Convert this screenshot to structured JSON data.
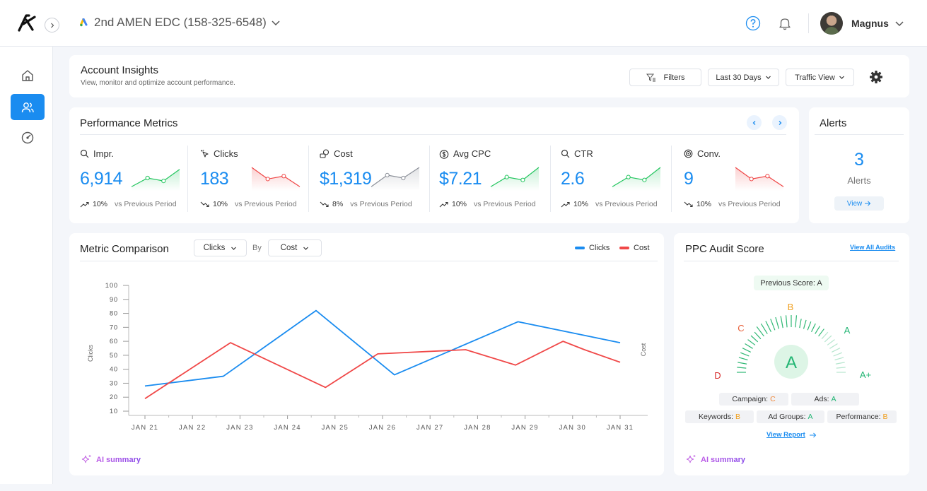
{
  "topbar": {
    "account_name": "2nd AMEN EDC (158-325-6548)",
    "user_name": "Magnus"
  },
  "insights": {
    "title": "Account Insights",
    "subtitle": "View, monitor and optimize account performance.",
    "filters_label": "Filters",
    "date_range": "Last 30 Days",
    "view_mode": "Traffic View"
  },
  "performance": {
    "title": "Performance Metrics",
    "metrics": [
      {
        "label": "Impr.",
        "value": "6,914",
        "change": "10%",
        "trend": "up",
        "compare": "vs Previous Period",
        "spark": [
          2,
          11,
          8,
          20
        ],
        "color": "#22c55e"
      },
      {
        "label": "Clicks",
        "value": "183",
        "change": "10%",
        "trend": "down",
        "compare": "vs Previous Period",
        "spark": [
          22,
          10,
          13,
          2
        ],
        "color": "#ef4444"
      },
      {
        "label": "Cost",
        "value": "$1,319",
        "change": "8%",
        "trend": "down",
        "compare": "vs Previous Period",
        "spark": [
          2,
          14,
          11,
          22
        ],
        "color": "#8b8f98"
      },
      {
        "label": "Avg CPC",
        "value": "$7.21",
        "change": "10%",
        "trend": "up",
        "compare": "vs Previous Period",
        "spark": [
          2,
          12,
          9,
          22
        ],
        "color": "#22c55e"
      },
      {
        "label": "CTR",
        "value": "2.6",
        "change": "10%",
        "trend": "up",
        "compare": "vs Previous Period",
        "spark": [
          2,
          12,
          9,
          22
        ],
        "color": "#22c55e"
      },
      {
        "label": "Conv.",
        "value": "9",
        "change": "10%",
        "trend": "down",
        "compare": "vs Previous Period",
        "spark": [
          22,
          10,
          13,
          2
        ],
        "color": "#ef4444"
      }
    ]
  },
  "alerts": {
    "title": "Alerts",
    "count": "3",
    "label": "Alerts",
    "view_label": "View"
  },
  "comparison": {
    "title": "Metric Comparison",
    "metric_a": "Clicks",
    "by_label": "By",
    "metric_b": "Cost",
    "ai_summary": "AI summary"
  },
  "chart_data": {
    "type": "line",
    "title": "Metric Comparison",
    "xlabel": "",
    "ylabel": "Clicks",
    "y2label": "Cost",
    "ylim": [
      10,
      100
    ],
    "yticks": [
      10,
      20,
      30,
      40,
      50,
      60,
      70,
      80,
      90,
      100
    ],
    "categories": [
      "JAN 21",
      "JAN 22",
      "JAN 23",
      "JAN 24",
      "JAN 25",
      "JAN 26",
      "JAN 27",
      "JAN 28",
      "JAN 29",
      "JAN 30",
      "JAN 31"
    ],
    "series": [
      {
        "name": "Clicks",
        "color": "#1a8cf0",
        "x": [
          21,
          22.65,
          24.6,
          26.25,
          28.85,
          31
        ],
        "values": [
          28,
          35,
          82,
          36,
          74,
          59
        ]
      },
      {
        "name": "Cost",
        "color": "#f04848",
        "x": [
          21,
          22.8,
          24.8,
          25.9,
          27.75,
          28.8,
          29.8,
          30.25,
          31
        ],
        "values": [
          19,
          59,
          27,
          51,
          54,
          43,
          60,
          54,
          45
        ]
      }
    ]
  },
  "audit": {
    "title": "PPC Audit Score",
    "view_all": "View All Audits",
    "previous_score": "Previous Score: A",
    "grade": "A",
    "scale": [
      "D",
      "C",
      "B",
      "A",
      "A+"
    ],
    "chips": [
      {
        "label": "Campaign:",
        "grade": "C",
        "color": "#f08a3c"
      },
      {
        "label": "Ads:",
        "grade": "A",
        "color": "#22b573"
      },
      {
        "label": "Keywords:",
        "grade": "B",
        "color": "#f0a020"
      },
      {
        "label": "Ad Groups:",
        "grade": "A",
        "color": "#22b573"
      },
      {
        "label": "Performance:",
        "grade": "B",
        "color": "#f0a020"
      }
    ],
    "view_report": "View Report",
    "ai_summary": "AI summary"
  },
  "colors": {
    "accent": "#1a8cf0",
    "up": "#22c55e",
    "down": "#ef4444"
  }
}
